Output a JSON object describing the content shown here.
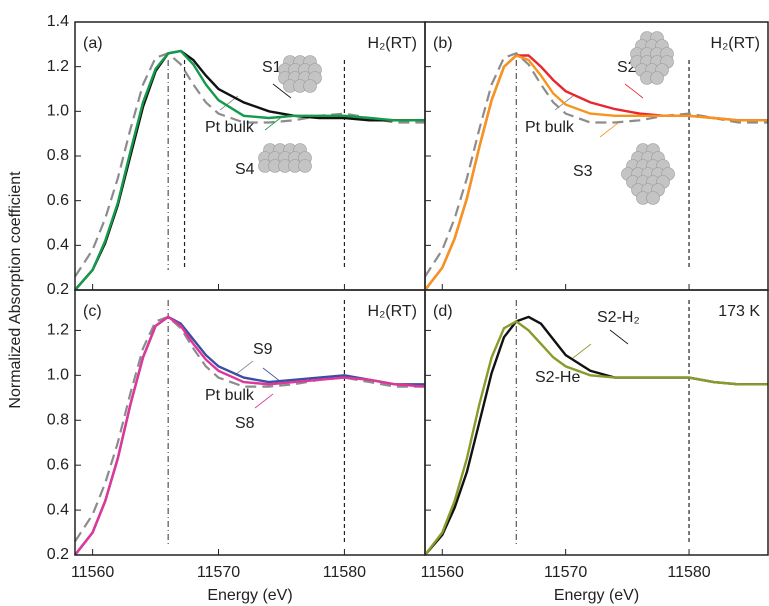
{
  "chart_data": [
    {
      "type": "line",
      "panel_label": "(a)",
      "condition": "H₂(RT)",
      "ylabel": "Normalized Absorption coefficient",
      "x": [
        11558.6,
        11560,
        11561,
        11562,
        11563,
        11564,
        11565,
        11566,
        11567,
        11568,
        11569,
        11570,
        11572,
        11574,
        11576,
        11578,
        11580,
        11582,
        11584,
        11586.4
      ],
      "series": [
        {
          "name": "Pt bulk",
          "color": "#8c8c8c",
          "dash": true,
          "values": [
            0.26,
            0.38,
            0.52,
            0.7,
            0.92,
            1.12,
            1.24,
            1.26,
            1.21,
            1.12,
            1.04,
            0.99,
            0.95,
            0.95,
            0.96,
            0.98,
            0.99,
            0.97,
            0.95,
            0.95
          ]
        },
        {
          "name": "S1",
          "color": "#111111",
          "values": [
            0.2,
            0.29,
            0.41,
            0.58,
            0.8,
            1.02,
            1.18,
            1.26,
            1.27,
            1.23,
            1.16,
            1.1,
            1.04,
            1.0,
            0.98,
            0.97,
            0.97,
            0.96,
            0.96,
            0.96
          ]
        },
        {
          "name": "S4",
          "color": "#139a4a",
          "values": [
            0.2,
            0.29,
            0.42,
            0.59,
            0.82,
            1.04,
            1.19,
            1.26,
            1.27,
            1.21,
            1.12,
            1.05,
            0.98,
            0.97,
            0.98,
            0.98,
            0.98,
            0.97,
            0.96,
            0.96
          ]
        }
      ],
      "reference_lines": [
        11566,
        11567.3,
        11580
      ],
      "xlim": [
        11558.6,
        11586.4
      ],
      "ylim": [
        0.2,
        1.4
      ],
      "xticks": [
        11560,
        11570,
        11580
      ],
      "yticks": [
        0.2,
        0.4,
        0.6,
        0.8,
        {
          "value": 1,
          "label": "1.0"
        },
        1.2,
        1.4
      ],
      "xtick_labels": false,
      "ytick_labels": true
    },
    {
      "type": "line",
      "panel_label": "(b)",
      "condition": "H₂(RT)",
      "x": [
        11558.6,
        11560,
        11561,
        11562,
        11563,
        11564,
        11565,
        11566,
        11567,
        11568,
        11569,
        11570,
        11572,
        11574,
        11576,
        11578,
        11580,
        11582,
        11584,
        11586.4
      ],
      "series": [
        {
          "name": "Pt bulk",
          "color": "#8c8c8c",
          "dash": true,
          "values": [
            0.26,
            0.38,
            0.52,
            0.7,
            0.92,
            1.12,
            1.24,
            1.26,
            1.21,
            1.12,
            1.04,
            0.99,
            0.95,
            0.95,
            0.96,
            0.98,
            0.99,
            0.97,
            0.95,
            0.95
          ]
        },
        {
          "name": "S2",
          "color": "#e8262d",
          "values": [
            0.2,
            0.3,
            0.43,
            0.61,
            0.84,
            1.05,
            1.2,
            1.25,
            1.25,
            1.2,
            1.14,
            1.09,
            1.04,
            1.01,
            0.99,
            0.98,
            0.98,
            0.97,
            0.96,
            0.96
          ]
        },
        {
          "name": "S3",
          "color": "#f7941d",
          "values": [
            0.2,
            0.3,
            0.43,
            0.61,
            0.84,
            1.05,
            1.2,
            1.25,
            1.23,
            1.16,
            1.08,
            1.03,
            0.99,
            0.98,
            0.98,
            0.98,
            0.98,
            0.97,
            0.96,
            0.96
          ]
        }
      ],
      "reference_lines": [
        11566,
        11580
      ],
      "xlim": [
        11558.6,
        11586.4
      ],
      "ylim": [
        0.2,
        1.4
      ],
      "xticks": [
        11560,
        11570,
        11580
      ],
      "yticks": [
        0.2,
        0.4,
        0.6,
        0.8,
        {
          "value": 1,
          "label": "1.0"
        },
        1.2,
        1.4
      ],
      "xtick_labels": false,
      "ytick_labels": false
    },
    {
      "type": "line",
      "panel_label": "(c)",
      "condition": "H₂(RT)",
      "xlabel": "Energy (eV)",
      "x": [
        11558.6,
        11560,
        11561,
        11562,
        11563,
        11564,
        11565,
        11566,
        11567,
        11568,
        11569,
        11570,
        11572,
        11574,
        11576,
        11578,
        11580,
        11582,
        11584,
        11586.4
      ],
      "series": [
        {
          "name": "Pt bulk",
          "color": "#8c8c8c",
          "dash": true,
          "values": [
            0.26,
            0.38,
            0.52,
            0.7,
            0.92,
            1.12,
            1.24,
            1.26,
            1.21,
            1.12,
            1.04,
            0.99,
            0.95,
            0.95,
            0.96,
            0.98,
            0.99,
            0.97,
            0.95,
            0.95
          ]
        },
        {
          "name": "S9",
          "color": "#3a4fa3",
          "values": [
            0.2,
            0.3,
            0.44,
            0.63,
            0.87,
            1.08,
            1.22,
            1.26,
            1.23,
            1.16,
            1.09,
            1.04,
            0.99,
            0.97,
            0.98,
            0.99,
            1.0,
            0.98,
            0.96,
            0.96
          ]
        },
        {
          "name": "S8",
          "color": "#e0369a",
          "values": [
            0.2,
            0.3,
            0.44,
            0.63,
            0.87,
            1.08,
            1.22,
            1.26,
            1.22,
            1.14,
            1.07,
            1.02,
            0.97,
            0.96,
            0.97,
            0.98,
            0.99,
            0.98,
            0.96,
            0.95
          ]
        }
      ],
      "reference_lines": [
        11566,
        11580
      ],
      "xlim": [
        11558.6,
        11586.4
      ],
      "ylim": [
        0.2,
        1.38
      ],
      "xticks": [
        11560,
        11570,
        11580
      ],
      "yticks": [
        0.2,
        0.4,
        0.6,
        0.8,
        {
          "value": 1,
          "label": "1.0"
        },
        1.2
      ],
      "xtick_labels": true,
      "ytick_labels": true
    },
    {
      "type": "line",
      "panel_label": "(d)",
      "condition": "173 K",
      "xlabel": "Energy (eV)",
      "x": [
        11558.6,
        11560,
        11561,
        11562,
        11563,
        11564,
        11565,
        11566,
        11567,
        11568,
        11569,
        11570,
        11572,
        11574,
        11576,
        11578,
        11580,
        11582,
        11584,
        11586.4
      ],
      "series": [
        {
          "name": "S2-H₂",
          "color": "#111111",
          "values": [
            0.2,
            0.29,
            0.41,
            0.57,
            0.79,
            1.01,
            1.17,
            1.24,
            1.26,
            1.23,
            1.16,
            1.09,
            1.02,
            0.99,
            0.99,
            0.99,
            0.99,
            0.97,
            0.96,
            0.96
          ]
        },
        {
          "name": "S2-He",
          "color": "#8a9a2b",
          "values": [
            0.2,
            0.3,
            0.44,
            0.63,
            0.87,
            1.08,
            1.21,
            1.24,
            1.2,
            1.14,
            1.08,
            1.04,
            1.0,
            0.99,
            0.99,
            0.99,
            0.99,
            0.97,
            0.96,
            0.96
          ]
        }
      ],
      "reference_lines": [
        11566,
        11580
      ],
      "xlim": [
        11558.6,
        11586.4
      ],
      "ylim": [
        0.2,
        1.38
      ],
      "xticks": [
        11560,
        11570,
        11580
      ],
      "yticks": [
        0.2,
        0.4,
        0.6,
        0.8,
        {
          "value": 1,
          "label": "1.0"
        },
        1.2
      ],
      "xtick_labels": true,
      "ytick_labels": false
    }
  ]
}
